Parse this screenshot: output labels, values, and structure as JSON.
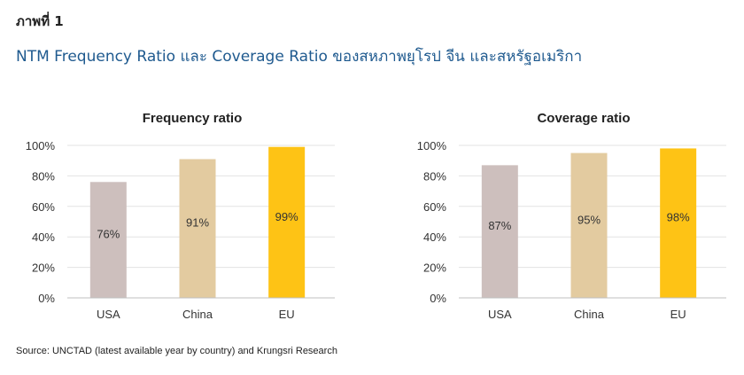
{
  "figure_label": "ภาพที่ 1",
  "title": "NTM Frequency Ratio และ Coverage Ratio ของสหภาพยุโรป จีน และสหรัฐอเมริกา",
  "source": "Source: UNCTAD (latest available year by country) and Krungsri Research",
  "chart_data": [
    {
      "type": "bar",
      "title": "Frequency ratio",
      "categories": [
        "USA",
        "China",
        "EU"
      ],
      "values": [
        76,
        91,
        99
      ],
      "data_labels": [
        "76%",
        "91%",
        "99%"
      ],
      "colors": [
        "#cdbfbd",
        "#e3cba0",
        "#fec315"
      ],
      "ylim": [
        0,
        100
      ],
      "yticks": [
        "0%",
        "20%",
        "40%",
        "60%",
        "80%",
        "100%"
      ],
      "grid": true,
      "xlabel": "",
      "ylabel": ""
    },
    {
      "type": "bar",
      "title": "Coverage ratio",
      "categories": [
        "USA",
        "China",
        "EU"
      ],
      "values": [
        87,
        95,
        98
      ],
      "data_labels": [
        "87%",
        "95%",
        "98%"
      ],
      "colors": [
        "#cdbfbd",
        "#e3cba0",
        "#fec315"
      ],
      "ylim": [
        0,
        100
      ],
      "yticks": [
        "0%",
        "20%",
        "40%",
        "60%",
        "80%",
        "100%"
      ],
      "grid": true,
      "xlabel": "",
      "ylabel": ""
    }
  ]
}
